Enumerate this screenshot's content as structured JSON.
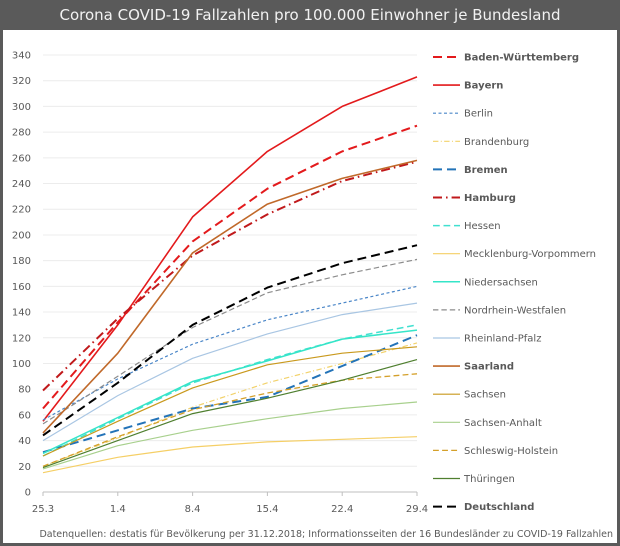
{
  "header": {
    "title": "Corona COVID-19 Fallzahlen pro 100.000 Einwohner je Bundesland"
  },
  "footer": {
    "source": "Datenquellen: destatis für Bevölkerung per 31.12.2018; Informationsseiten der 16 Bundesländer zu COVID-19 Fallzahlen"
  },
  "chart_data": {
    "type": "line",
    "title": "Corona COVID-19 Fallzahlen pro 100.000 Einwohner je Bundesland",
    "xlabel": "",
    "ylabel": "",
    "x": [
      "25.3",
      "1.4",
      "8.4",
      "15.4",
      "22.4",
      "29.4"
    ],
    "ylim": [
      0,
      340
    ],
    "yticks": [
      0,
      20,
      40,
      60,
      80,
      100,
      120,
      140,
      160,
      180,
      200,
      220,
      240,
      260,
      280,
      300,
      320,
      340
    ],
    "grid": true,
    "legend_position": "right",
    "series": [
      {
        "name": "Baden-Württemberg",
        "color": "#e31a1c",
        "dash": "long-dash",
        "width": 2,
        "bold": true,
        "values": [
          65,
          132,
          195,
          236,
          265,
          285
        ]
      },
      {
        "name": "Bayern",
        "color": "#e31a1c",
        "dash": "solid",
        "width": 1.6,
        "bold": true,
        "values": [
          55,
          130,
          214,
          265,
          300,
          323
        ]
      },
      {
        "name": "Berlin",
        "color": "#4a86c8",
        "dash": "short-dash",
        "width": 1.2,
        "bold": false,
        "values": [
          56,
          88,
          115,
          134,
          147,
          160
        ]
      },
      {
        "name": "Brandenburg",
        "color": "#f2d26b",
        "dash": "dash-dot",
        "width": 1.2,
        "bold": false,
        "values": [
          20,
          42,
          66,
          85,
          100,
          116
        ]
      },
      {
        "name": "Bremen",
        "color": "#2373b8",
        "dash": "long-dash",
        "width": 2,
        "bold": true,
        "values": [
          31,
          48,
          65,
          74,
          98,
          122
        ]
      },
      {
        "name": "Hamburg",
        "color": "#c0191b",
        "dash": "dash-dot",
        "width": 2,
        "bold": true,
        "values": [
          79,
          135,
          184,
          216,
          242,
          257
        ]
      },
      {
        "name": "Hessen",
        "color": "#40e0d0",
        "dash": "long-dash",
        "width": 1.5,
        "bold": false,
        "values": [
          28,
          57,
          85,
          103,
          119,
          130
        ]
      },
      {
        "name": "Mecklenburg-Vorpommern",
        "color": "#f5cf66",
        "dash": "solid",
        "width": 1.2,
        "bold": false,
        "values": [
          15,
          27,
          35,
          39,
          41,
          43
        ]
      },
      {
        "name": "Niedersachsen",
        "color": "#35e5c8",
        "dash": "solid",
        "width": 1.5,
        "bold": false,
        "values": [
          30,
          58,
          86,
          102,
          119,
          126
        ]
      },
      {
        "name": "Nordrhein-Westfalen",
        "color": "#8c8c8c",
        "dash": "long-dash",
        "width": 1.2,
        "bold": false,
        "values": [
          53,
          90,
          128,
          155,
          169,
          181
        ]
      },
      {
        "name": "Rheinland-Pfalz",
        "color": "#a9c6e3",
        "dash": "solid",
        "width": 1.2,
        "bold": false,
        "values": [
          40,
          75,
          104,
          123,
          138,
          147
        ]
      },
      {
        "name": "Saarland",
        "color": "#c0692a",
        "dash": "solid",
        "width": 1.6,
        "bold": true,
        "values": [
          46,
          108,
          186,
          224,
          244,
          258
        ]
      },
      {
        "name": "Sachsen",
        "color": "#c9991d",
        "dash": "solid",
        "width": 1.2,
        "bold": false,
        "values": [
          28,
          55,
          81,
          99,
          108,
          113
        ]
      },
      {
        "name": "Sachsen-Anhalt",
        "color": "#a8d08d",
        "dash": "solid",
        "width": 1.2,
        "bold": false,
        "values": [
          18,
          36,
          48,
          57,
          65,
          70
        ]
      },
      {
        "name": "Schleswig-Holstein",
        "color": "#d4a02a",
        "dash": "long-dash",
        "width": 1.3,
        "bold": false,
        "values": [
          20,
          43,
          64,
          77,
          87,
          92
        ]
      },
      {
        "name": "Thüringen",
        "color": "#4f7f2f",
        "dash": "solid",
        "width": 1.2,
        "bold": false,
        "values": [
          19,
          40,
          61,
          73,
          87,
          103
        ]
      },
      {
        "name": "Deutschland",
        "color": "#000000",
        "dash": "long-dash",
        "width": 2,
        "bold": true,
        "values": [
          44,
          85,
          130,
          159,
          178,
          192
        ]
      }
    ]
  }
}
